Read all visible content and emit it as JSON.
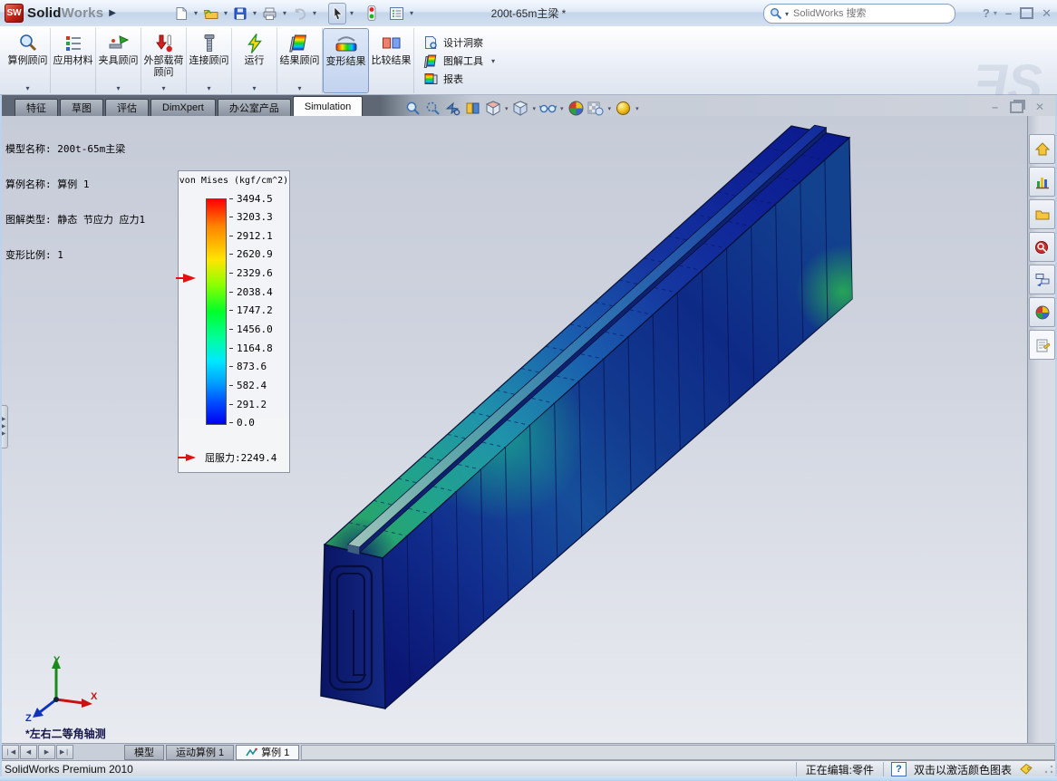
{
  "window": {
    "brand_mark": "SW",
    "brand_solid": "Solid",
    "brand_works": "Works",
    "title": "200t-65m主梁 *",
    "search_placeholder": "SolidWorks 搜索",
    "help_glyph": "?"
  },
  "ribbon": {
    "buttons": [
      {
        "label": "算例顾问",
        "caret": true
      },
      {
        "label": "应用材料",
        "caret": false
      },
      {
        "label": "夹具顾问",
        "caret": true
      },
      {
        "label": "外部载荷顾问",
        "caret": true
      },
      {
        "label": "连接顾问",
        "caret": true
      },
      {
        "label": "运行",
        "caret": true
      },
      {
        "label": "结果顾问",
        "caret": true
      },
      {
        "label": "变形结果",
        "caret": false,
        "active": true
      },
      {
        "label": "比较结果",
        "caret": false
      }
    ],
    "tools": [
      {
        "label": "设计洞察",
        "caret": false
      },
      {
        "label": "图解工具",
        "caret": true
      },
      {
        "label": "报表",
        "caret": false
      }
    ]
  },
  "command_tabs": [
    "特征",
    "草图",
    "评估",
    "DimXpert",
    "办公室产品",
    "Simulation"
  ],
  "viewport": {
    "model_info_1": "模型名称: 200t-65m主梁",
    "model_info_2": "算例名称: 算例 1",
    "model_info_3": "图解类型: 静态 节应力 应力1",
    "model_info_4": "变形比例: 1",
    "view_label": "*左右二等角轴测",
    "triad": {
      "x": "X",
      "y": "Y",
      "z": "Z"
    }
  },
  "legend": {
    "title": "von Mises (kgf/cm^2)",
    "ticks": [
      "3494.5",
      "3203.3",
      "2912.1",
      "2620.9",
      "2329.6",
      "2038.4",
      "1747.2",
      "1456.0",
      "1164.8",
      "873.6",
      "582.4",
      "291.2",
      "0.0"
    ],
    "yield_text": "屈服力:2249.4",
    "yield_value": 2249.4,
    "max_value": 3494.5,
    "unit": "kgf/cm^2"
  },
  "doc_tabs": [
    "模型",
    "运动算例 1",
    "算例 1"
  ],
  "status": {
    "product": "SolidWorks Premium 2010",
    "editing": "正在编辑:零件",
    "hint": "双击以激活颜色图表"
  }
}
